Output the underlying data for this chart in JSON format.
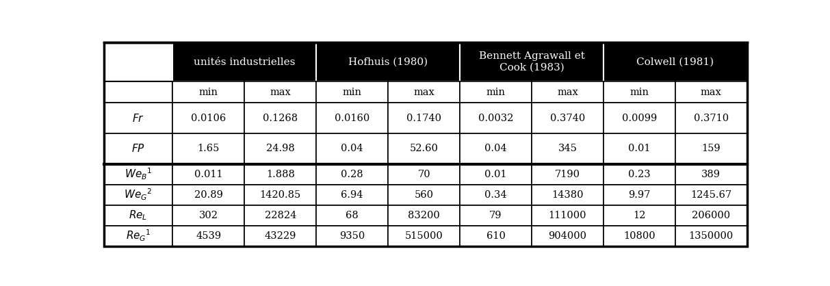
{
  "header_groups": [
    {
      "label": "unités industrielles",
      "span": 2
    },
    {
      "label": "Hofhuis (1980)",
      "span": 2
    },
    {
      "label": "Bennett Agrawall et\nCook (1983)",
      "span": 2
    },
    {
      "label": "Colwell (1981)",
      "span": 2
    }
  ],
  "subheaders": [
    "min",
    "max",
    "min",
    "max",
    "min",
    "max",
    "min",
    "max"
  ],
  "row_labels": [
    "$\\mathit{Fr}$",
    "$\\mathit{FP}$",
    "$\\mathit{We}_\\mathit{B}$$^1$",
    "$\\mathit{We}_\\mathit{G}$$^2$",
    "$\\mathit{Re}_\\mathit{L}$",
    "$\\mathit{Re}_\\mathit{G}$$^1$"
  ],
  "data": [
    [
      "0.0106",
      "0.1268",
      "0.0160",
      "0.1740",
      "0.0032",
      "0.3740",
      "0.0099",
      "0.3710"
    ],
    [
      "1.65",
      "24.98",
      "0.04",
      "52.60",
      "0.04",
      "345",
      "0.01",
      "159"
    ],
    [
      "0.011",
      "1.888",
      "0.28",
      "70",
      "0.01",
      "7190",
      "0.23",
      "389"
    ],
    [
      "20.89",
      "1420.85",
      "6.94",
      "560",
      "0.34",
      "14380",
      "9.97",
      "1245.67"
    ],
    [
      "302",
      "22824",
      "68",
      "83200",
      "79",
      "111000",
      "12",
      "206000"
    ],
    [
      "4539",
      "43229",
      "9350",
      "515000",
      "610",
      "904000",
      "10800",
      "1350000"
    ]
  ],
  "header_bg": "#000000",
  "header_fg": "#ffffff",
  "cell_bg": "#ffffff",
  "cell_fg": "#000000",
  "border_color": "#000000",
  "thick_border_after_row": 1,
  "figsize": [
    12.13,
    4.18
  ],
  "dpi": 100
}
